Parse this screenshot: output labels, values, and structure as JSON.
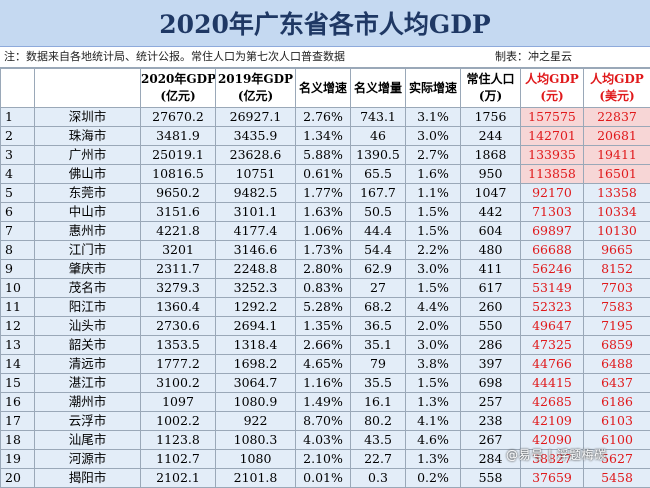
{
  "title": "2020年广东省各市人均GDP",
  "note": {
    "text": "注：数据来自各地统计局、统计公报。常住人口为第七次人口普查数据",
    "author": "制表：冲之星云"
  },
  "headers": [
    {
      "l1": "",
      "l2": ""
    },
    {
      "l1": "",
      "l2": ""
    },
    {
      "l1": "2020年GDP",
      "l2": "(亿元)"
    },
    {
      "l1": "2019年GDP",
      "l2": "(亿元)"
    },
    {
      "l1": "名义增速",
      "l2": ""
    },
    {
      "l1": "名义增量",
      "l2": ""
    },
    {
      "l1": "实际增速",
      "l2": ""
    },
    {
      "l1": "常住人口",
      "l2": "(万)"
    },
    {
      "l1": "人均GDP",
      "l2": "(元)"
    },
    {
      "l1": "人均GDP",
      "l2": "(美元)"
    }
  ],
  "rows": [
    {
      "idx": "1",
      "city": "深圳市",
      "gdp2020": "27670.2",
      "gdp2019": "26927.1",
      "nominal_growth": "2.76%",
      "increment": "743.1",
      "real_growth": "3.1%",
      "population": "1756",
      "per_capita_cny": "157575",
      "per_capita_usd": "22837"
    },
    {
      "idx": "2",
      "city": "珠海市",
      "gdp2020": "3481.9",
      "gdp2019": "3435.9",
      "nominal_growth": "1.34%",
      "increment": "46",
      "real_growth": "3.0%",
      "population": "244",
      "per_capita_cny": "142701",
      "per_capita_usd": "20681"
    },
    {
      "idx": "3",
      "city": "广州市",
      "gdp2020": "25019.1",
      "gdp2019": "23628.6",
      "nominal_growth": "5.88%",
      "increment": "1390.5",
      "real_growth": "2.7%",
      "population": "1868",
      "per_capita_cny": "133935",
      "per_capita_usd": "19411"
    },
    {
      "idx": "4",
      "city": "佛山市",
      "gdp2020": "10816.5",
      "gdp2019": "10751",
      "nominal_growth": "0.61%",
      "increment": "65.5",
      "real_growth": "1.6%",
      "population": "950",
      "per_capita_cny": "113858",
      "per_capita_usd": "16501"
    },
    {
      "idx": "5",
      "city": "东莞市",
      "gdp2020": "9650.2",
      "gdp2019": "9482.5",
      "nominal_growth": "1.77%",
      "increment": "167.7",
      "real_growth": "1.1%",
      "population": "1047",
      "per_capita_cny": "92170",
      "per_capita_usd": "13358"
    },
    {
      "idx": "6",
      "city": "中山市",
      "gdp2020": "3151.6",
      "gdp2019": "3101.1",
      "nominal_growth": "1.63%",
      "increment": "50.5",
      "real_growth": "1.5%",
      "population": "442",
      "per_capita_cny": "71303",
      "per_capita_usd": "10334"
    },
    {
      "idx": "7",
      "city": "惠州市",
      "gdp2020": "4221.8",
      "gdp2019": "4177.4",
      "nominal_growth": "1.06%",
      "increment": "44.4",
      "real_growth": "1.5%",
      "population": "604",
      "per_capita_cny": "69897",
      "per_capita_usd": "10130"
    },
    {
      "idx": "8",
      "city": "江门市",
      "gdp2020": "3201",
      "gdp2019": "3146.6",
      "nominal_growth": "1.73%",
      "increment": "54.4",
      "real_growth": "2.2%",
      "population": "480",
      "per_capita_cny": "66688",
      "per_capita_usd": "9665"
    },
    {
      "idx": "9",
      "city": "肇庆市",
      "gdp2020": "2311.7",
      "gdp2019": "2248.8",
      "nominal_growth": "2.80%",
      "increment": "62.9",
      "real_growth": "3.0%",
      "population": "411",
      "per_capita_cny": "56246",
      "per_capita_usd": "8152"
    },
    {
      "idx": "10",
      "city": "茂名市",
      "gdp2020": "3279.3",
      "gdp2019": "3252.3",
      "nominal_growth": "0.83%",
      "increment": "27",
      "real_growth": "1.5%",
      "population": "617",
      "per_capita_cny": "53149",
      "per_capita_usd": "7703"
    },
    {
      "idx": "11",
      "city": "阳江市",
      "gdp2020": "1360.4",
      "gdp2019": "1292.2",
      "nominal_growth": "5.28%",
      "increment": "68.2",
      "real_growth": "4.4%",
      "population": "260",
      "per_capita_cny": "52323",
      "per_capita_usd": "7583"
    },
    {
      "idx": "12",
      "city": "汕头市",
      "gdp2020": "2730.6",
      "gdp2019": "2694.1",
      "nominal_growth": "1.35%",
      "increment": "36.5",
      "real_growth": "2.0%",
      "population": "550",
      "per_capita_cny": "49647",
      "per_capita_usd": "7195"
    },
    {
      "idx": "13",
      "city": "韶关市",
      "gdp2020": "1353.5",
      "gdp2019": "1318.4",
      "nominal_growth": "2.66%",
      "increment": "35.1",
      "real_growth": "3.0%",
      "population": "286",
      "per_capita_cny": "47325",
      "per_capita_usd": "6859"
    },
    {
      "idx": "14",
      "city": "清远市",
      "gdp2020": "1777.2",
      "gdp2019": "1698.2",
      "nominal_growth": "4.65%",
      "increment": "79",
      "real_growth": "3.8%",
      "population": "397",
      "per_capita_cny": "44766",
      "per_capita_usd": "6488"
    },
    {
      "idx": "15",
      "city": "湛江市",
      "gdp2020": "3100.2",
      "gdp2019": "3064.7",
      "nominal_growth": "1.16%",
      "increment": "35.5",
      "real_growth": "1.5%",
      "population": "698",
      "per_capita_cny": "44415",
      "per_capita_usd": "6437"
    },
    {
      "idx": "16",
      "city": "潮州市",
      "gdp2020": "1097",
      "gdp2019": "1080.9",
      "nominal_growth": "1.49%",
      "increment": "16.1",
      "real_growth": "1.3%",
      "population": "257",
      "per_capita_cny": "42685",
      "per_capita_usd": "6186"
    },
    {
      "idx": "17",
      "city": "云浮市",
      "gdp2020": "1002.2",
      "gdp2019": "922",
      "nominal_growth": "8.70%",
      "increment": "80.2",
      "real_growth": "4.1%",
      "population": "238",
      "per_capita_cny": "42109",
      "per_capita_usd": "6103"
    },
    {
      "idx": "18",
      "city": "汕尾市",
      "gdp2020": "1123.8",
      "gdp2019": "1080.3",
      "nominal_growth": "4.03%",
      "increment": "43.5",
      "real_growth": "4.6%",
      "population": "267",
      "per_capita_cny": "42090",
      "per_capita_usd": "6100"
    },
    {
      "idx": "19",
      "city": "河源市",
      "gdp2020": "1102.7",
      "gdp2019": "1080",
      "nominal_growth": "2.10%",
      "increment": "22.7",
      "real_growth": "1.3%",
      "population": "284",
      "per_capita_cny": "38827",
      "per_capita_usd": "5627"
    },
    {
      "idx": "20",
      "city": "揭阳市",
      "gdp2020": "2102.1",
      "gdp2019": "2101.8",
      "nominal_growth": "0.01%",
      "increment": "0.3",
      "real_growth": "0.2%",
      "population": "558",
      "per_capita_cny": "37659",
      "per_capita_usd": "5458"
    }
  ],
  "watermark": "@易号 | 浮题梅碳",
  "colors": {
    "title_bg": "#c5d9f1",
    "title_text": "#1f3864",
    "row_bg": "#e3edf8",
    "highlight_bg": "#f7d6d6",
    "red_text": "#e0191b",
    "grid": "#9aa8b8"
  }
}
